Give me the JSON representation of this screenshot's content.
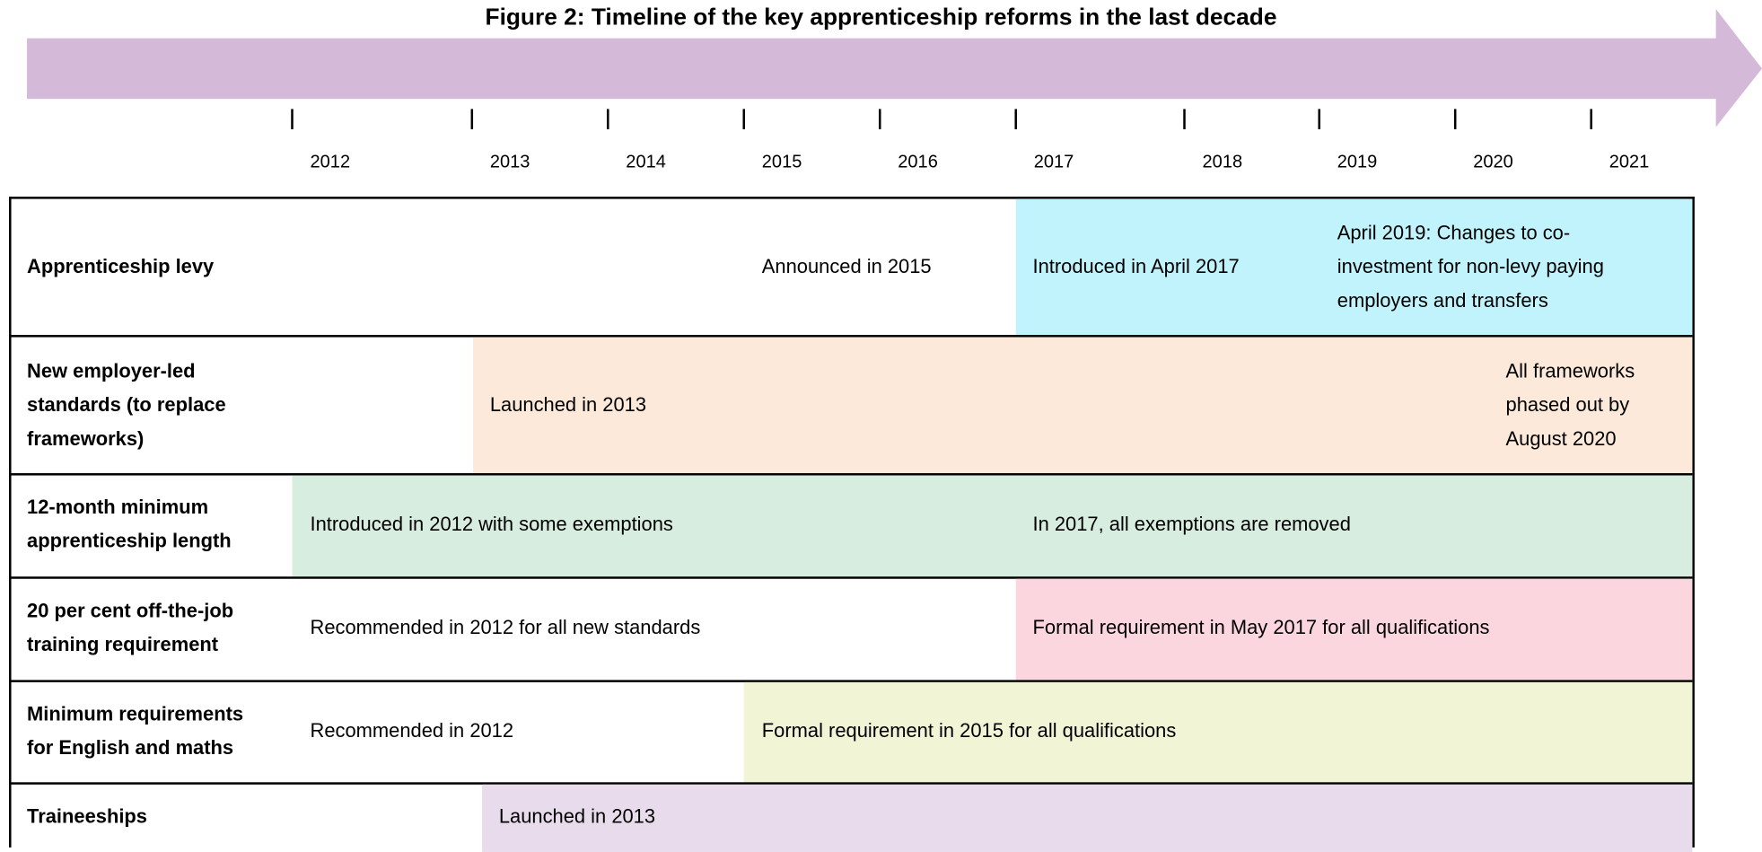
{
  "title": "Figure 2: Timeline of the key apprenticeship reforms in the last decade",
  "years": [
    "2012",
    "2013",
    "2014",
    "2015",
    "2016",
    "2017",
    "2018",
    "2019",
    "2020",
    "2021"
  ],
  "rows": [
    {
      "label": "Apprenticeship levy",
      "notes": [
        "Announced in 2015",
        "Introduced in April 2017",
        "April 2019: Changes to co-investment for non-levy paying employers and transfers"
      ]
    },
    {
      "label": "New employer-led standards (to replace frameworks)",
      "notes": [
        "Launched in 2013",
        "All frameworks phased out by August 2020"
      ]
    },
    {
      "label": "12-month minimum apprenticeship length",
      "notes": [
        "Introduced in 2012 with some exemptions",
        "In 2017, all exemptions are removed"
      ]
    },
    {
      "label": "20 per cent off-the-job training requirement",
      "notes": [
        "Recommended in 2012 for all new standards",
        "Formal requirement in May 2017 for all qualifications"
      ]
    },
    {
      "label": "Minimum requirements for English and maths",
      "notes": [
        "Recommended in 2012",
        "Formal requirement in 2015 for all qualifications"
      ]
    },
    {
      "label": "Traineeships",
      "notes": [
        "Launched in 2013"
      ]
    }
  ]
}
